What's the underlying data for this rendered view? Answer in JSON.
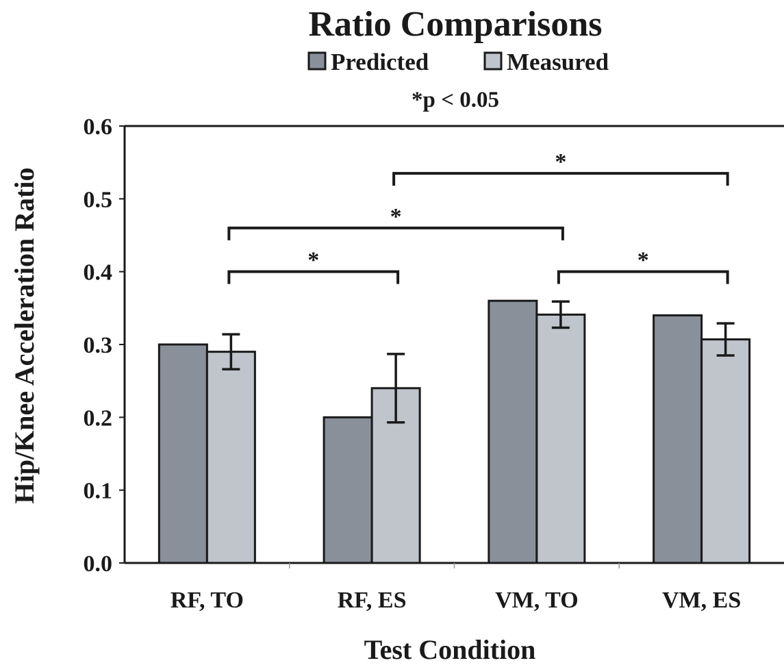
{
  "chart_data": {
    "type": "bar",
    "title": "Ratio Comparisons",
    "note": "*p < 0.05",
    "xlabel": "Test Condition",
    "ylabel": "Hip/Knee Acceleration Ratio",
    "categories": [
      "RF, TO",
      "RF, ES",
      "VM, TO",
      "VM, ES"
    ],
    "yticks": [
      "0.0",
      "0.1",
      "0.2",
      "0.3",
      "0.4",
      "0.5",
      "0.6"
    ],
    "ylim": [
      0,
      0.6
    ],
    "legend_position": "top",
    "grid": false,
    "series": [
      {
        "name": "Predicted",
        "color": "#8a9099",
        "values": [
          0.3,
          0.2,
          0.36,
          0.34
        ]
      },
      {
        "name": "Measured",
        "color": "#c0c4cb",
        "values": [
          0.29,
          0.24,
          0.341,
          0.307
        ],
        "error": [
          0.024,
          0.047,
          0.018,
          0.022
        ]
      }
    ],
    "significance": [
      {
        "from_category": 0,
        "from_series": 1,
        "to_category": 1,
        "to_series": 1,
        "y": 0.4,
        "label": "*"
      },
      {
        "from_category": 0,
        "from_series": 1,
        "to_category": 2,
        "to_series": 1,
        "y": 0.46,
        "label": "*"
      },
      {
        "from_category": 1,
        "from_series": 1,
        "to_category": 3,
        "to_series": 1,
        "y": 0.535,
        "label": "*"
      },
      {
        "from_category": 2,
        "from_series": 1,
        "to_category": 3,
        "to_series": 1,
        "y": 0.4,
        "label": "*"
      }
    ]
  }
}
